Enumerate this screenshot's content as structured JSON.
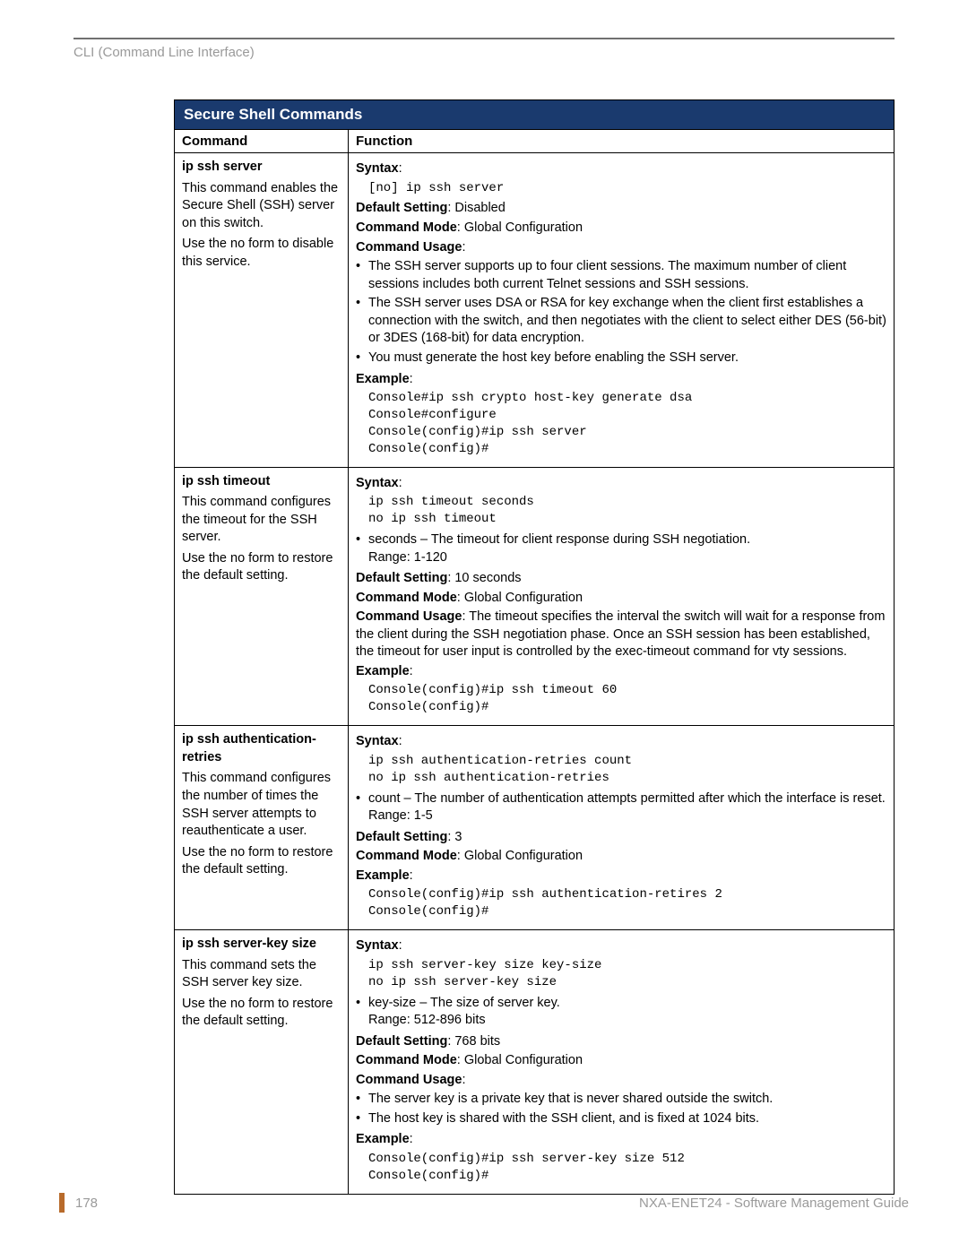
{
  "breadcrumb": "CLI (Command Line Interface)",
  "colors": {
    "header_bg": "#1a3a6e",
    "header_fg": "#ffffff",
    "border": "#000000",
    "muted": "#9a9a9a",
    "accent": "#b86b2b"
  },
  "table": {
    "title": "Secure Shell Commands",
    "columns": [
      "Command",
      "Function"
    ],
    "rows": [
      {
        "cmd_name": "ip ssh server",
        "cmd_desc1": "This command enables the Secure Shell (SSH) server on this switch.",
        "cmd_desc2": "Use the no form to disable this service.",
        "syntax_label": "Syntax",
        "syntax_code": "[no] ip ssh server",
        "default_label": "Default Setting",
        "default_value": ": Disabled",
        "mode_label": "Command Mode",
        "mode_value": ": Global Configuration",
        "usage_label": "Command Usage",
        "usage_bullets": [
          "The SSH server supports up to four client sessions. The maximum number of client sessions includes both current Telnet sessions and SSH sessions.",
          "The SSH server uses DSA or RSA for key exchange when the client first establishes a connection with the switch, and then negotiates with the client to select either DES (56-bit) or 3DES (168-bit) for data encryption.",
          "You must generate the host key before enabling the SSH server."
        ],
        "example_label": "Example",
        "example_code": "Console#ip ssh crypto host-key generate dsa\nConsole#configure\nConsole(config)#ip ssh server\nConsole(config)#"
      },
      {
        "cmd_name": "ip ssh timeout",
        "cmd_desc1": "This command configures the timeout for the SSH server.",
        "cmd_desc2": "Use the no form to restore the default setting.",
        "syntax_label": "Syntax",
        "syntax_code": "ip ssh timeout seconds\nno ip ssh timeout",
        "param_bullet": "seconds – The timeout for client response during SSH negotiation.",
        "param_range": "Range: 1-120",
        "default_label": "Default Setting",
        "default_value": ": 10 seconds",
        "mode_label": "Command Mode",
        "mode_value": ": Global Configuration",
        "usage_label": "Command Usage",
        "usage_inline": ": The timeout specifies the interval the switch will wait for a response from the client during the SSH negotiation phase. Once an SSH session has been established, the timeout for user input is controlled by the exec-timeout command for vty sessions.",
        "example_label": "Example",
        "example_code": "Console(config)#ip ssh timeout 60\nConsole(config)#"
      },
      {
        "cmd_name": "ip ssh authentication-retries",
        "cmd_desc1": "This command configures the number of times the SSH server attempts to reauthenticate a user.",
        "cmd_desc2": "Use the no form to restore the default setting.",
        "syntax_label": "Syntax",
        "syntax_code": "ip ssh authentication-retries count\nno ip ssh authentication-retries",
        "param_bullet": "count – The number of authentication attempts permitted after which the interface is reset.",
        "param_range": "Range: 1-5",
        "default_label": "Default Setting",
        "default_value": ": 3",
        "mode_label": "Command Mode",
        "mode_value": ": Global Configuration",
        "example_label": "Example",
        "example_code": "Console(config)#ip ssh authentication-retires 2\nConsole(config)#"
      },
      {
        "cmd_name": "ip ssh server-key size",
        "cmd_desc1": "This command sets the SSH server key size.",
        "cmd_desc2": "Use the no form to restore the default setting.",
        "syntax_label": "Syntax",
        "syntax_code": "ip ssh server-key size key-size\nno ip ssh server-key size",
        "param_bullet": "key-size – The size of server key.",
        "param_range": "Range: 512-896 bits",
        "default_label": "Default Setting",
        "default_value": ": 768 bits",
        "mode_label": "Command Mode",
        "mode_value": ": Global Configuration",
        "usage_label": "Command Usage",
        "usage_bullets": [
          "The server key is a private key that is never shared outside the switch.",
          "The host key is shared with the SSH client, and is fixed at 1024 bits."
        ],
        "example_label": "Example",
        "example_code": "Console(config)#ip ssh server-key size 512\nConsole(config)#"
      }
    ]
  },
  "footer": {
    "page": "178",
    "title": "NXA-ENET24 - Software Management Guide"
  }
}
